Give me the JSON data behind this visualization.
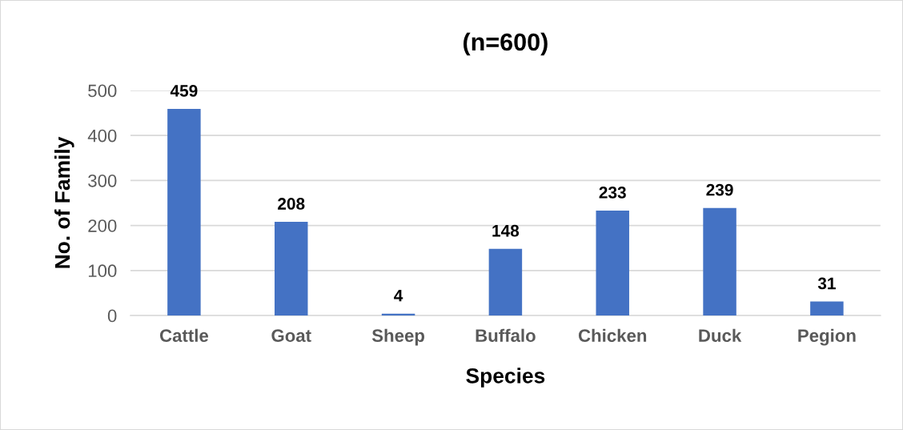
{
  "chart_data": {
    "type": "bar",
    "title": "(n=600)",
    "xlabel": "Species",
    "ylabel": "No. of Family",
    "categories": [
      "Cattle",
      "Goat",
      "Sheep",
      "Buffalo",
      "Chicken",
      "Duck",
      "Pegion"
    ],
    "values": [
      459,
      208,
      4,
      148,
      233,
      239,
      31
    ],
    "color": "#4472c4",
    "ylim": [
      0,
      500
    ],
    "yticks": [
      0,
      100,
      200,
      300,
      400,
      500
    ],
    "grid": "y",
    "data_labels": true,
    "legend": false
  }
}
